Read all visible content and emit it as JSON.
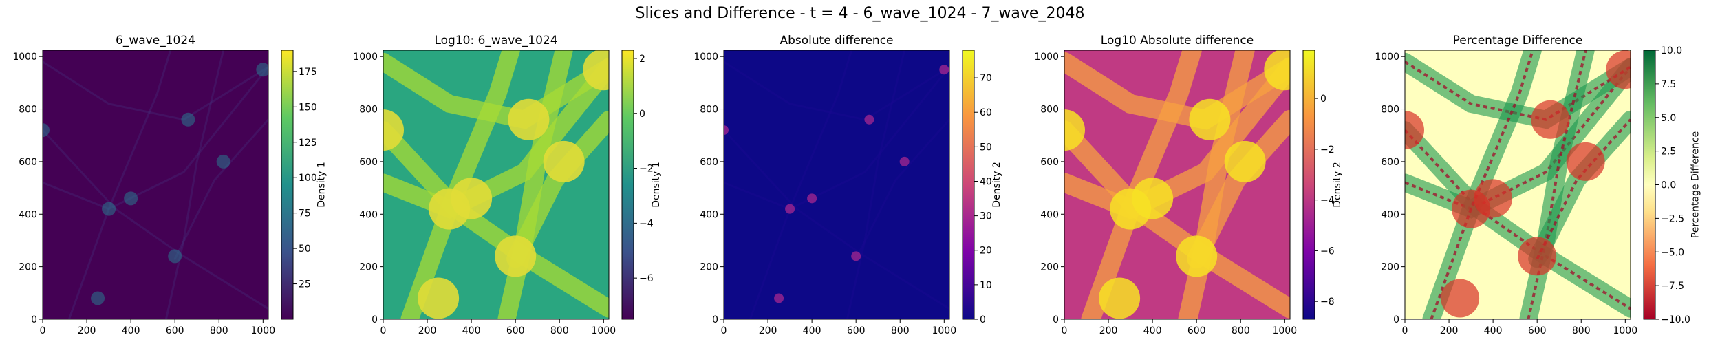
{
  "figure": {
    "suptitle": "Slices and Difference - t = 4 - 6_wave_1024 - 7_wave_2048"
  },
  "chart_data": [
    {
      "type": "heatmap",
      "title": "6_wave_1024",
      "xlabel": "",
      "ylabel": "",
      "xlim": [
        0,
        1024
      ],
      "ylim": [
        0,
        1024
      ],
      "xticks": [
        0,
        200,
        400,
        600,
        800,
        1000
      ],
      "yticks": [
        0,
        200,
        400,
        600,
        800,
        1000
      ],
      "colormap": "viridis",
      "colorbar": {
        "label": "Density 1",
        "range": [
          0,
          190
        ],
        "ticks": [
          25,
          50,
          75,
          100,
          125,
          150,
          175
        ]
      }
    },
    {
      "type": "heatmap",
      "title": "Log10: 6_wave_1024",
      "xlabel": "",
      "ylabel": "",
      "xlim": [
        0,
        1024
      ],
      "ylim": [
        0,
        1024
      ],
      "xticks": [
        0,
        200,
        400,
        600,
        800,
        1000
      ],
      "yticks": [
        0,
        200,
        400,
        600,
        800,
        1000
      ],
      "colormap": "viridis",
      "colorbar": {
        "label": "Density 1",
        "range": [
          -7.5,
          2.3
        ],
        "ticks": [
          -6,
          -4,
          -2,
          0,
          2
        ]
      }
    },
    {
      "type": "heatmap",
      "title": "Absolute difference",
      "xlabel": "",
      "ylabel": "",
      "xlim": [
        0,
        1024
      ],
      "ylim": [
        0,
        1024
      ],
      "xticks": [
        0,
        200,
        400,
        600,
        800,
        1000
      ],
      "yticks": [
        0,
        200,
        400,
        600,
        800,
        1000
      ],
      "colormap": "plasma",
      "colorbar": {
        "label": "Density 2",
        "range": [
          0,
          78
        ],
        "ticks": [
          0,
          10,
          20,
          30,
          40,
          50,
          60,
          70
        ]
      }
    },
    {
      "type": "heatmap",
      "title": "Log10 Absolute difference",
      "xlabel": "",
      "ylabel": "",
      "xlim": [
        0,
        1024
      ],
      "ylim": [
        0,
        1024
      ],
      "xticks": [
        0,
        200,
        400,
        600,
        800,
        1000
      ],
      "yticks": [
        0,
        200,
        400,
        600,
        800,
        1000
      ],
      "colormap": "plasma",
      "colorbar": {
        "label": "Density 2",
        "range": [
          -8.7,
          1.9
        ],
        "ticks": [
          -8,
          -6,
          -4,
          -2,
          0
        ]
      }
    },
    {
      "type": "heatmap",
      "title": "Percentage Difference",
      "xlabel": "",
      "ylabel": "",
      "xlim": [
        0,
        1024
      ],
      "ylim": [
        0,
        1024
      ],
      "xticks": [
        0,
        200,
        400,
        600,
        800,
        1000
      ],
      "yticks": [
        0,
        200,
        400,
        600,
        800,
        1000
      ],
      "colormap": "RdYlGn",
      "colorbar": {
        "label": "Percentage Difference",
        "range": [
          -10,
          10
        ],
        "ticks": [
          -10.0,
          -7.5,
          -5.0,
          -2.5,
          0.0,
          2.5,
          5.0,
          7.5,
          10.0
        ]
      }
    }
  ]
}
